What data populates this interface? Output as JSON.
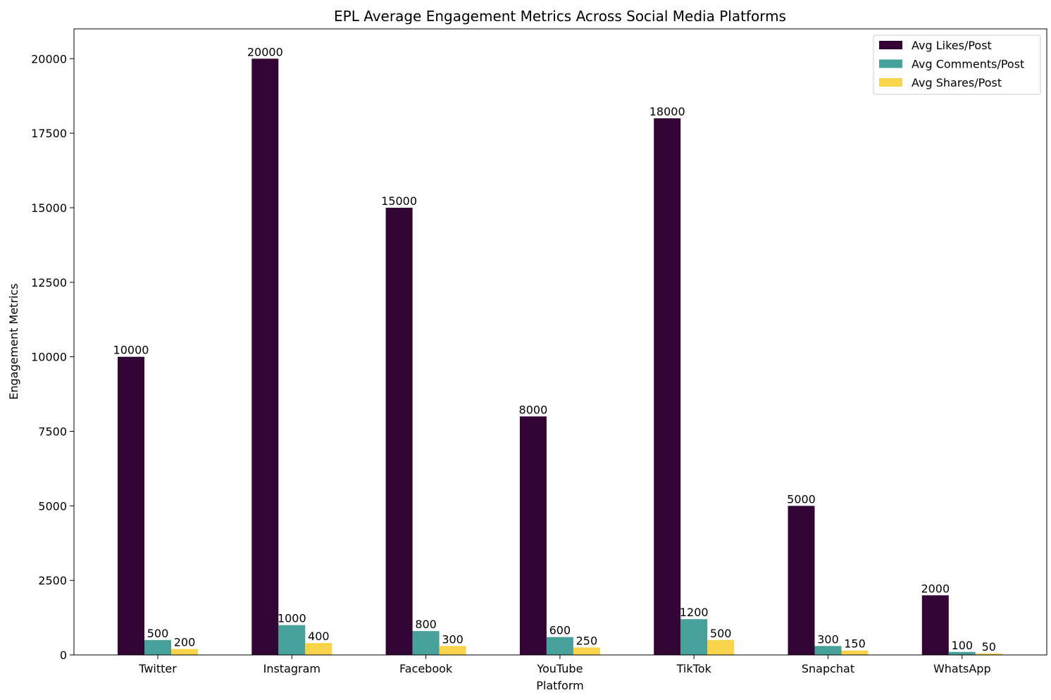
{
  "chart_data": {
    "type": "bar",
    "title": "EPL Average Engagement Metrics Across Social Media Platforms",
    "xlabel": "Platform",
    "ylabel": "Engagement Metrics",
    "categories": [
      "Twitter",
      "Instagram",
      "Facebook",
      "YouTube",
      "TikTok",
      "Snapchat",
      "WhatsApp"
    ],
    "series": [
      {
        "name": "Avg Likes/Post",
        "color": "#330534",
        "values": [
          10000,
          20000,
          15000,
          8000,
          18000,
          5000,
          2000
        ],
        "labels": [
          "10000",
          "20000",
          "15000",
          "8000",
          "18000",
          "5000",
          "2000"
        ]
      },
      {
        "name": "Avg Comments/Post",
        "color": "#48a09a",
        "values": [
          500,
          1000,
          800,
          600,
          1200,
          300,
          100
        ],
        "labels": [
          "500",
          "1000",
          "800",
          "600",
          "1200",
          "300",
          "100"
        ]
      },
      {
        "name": "Avg Shares/Post",
        "color": "#f7d44a",
        "values": [
          200,
          400,
          300,
          250,
          500,
          150,
          50
        ],
        "labels": [
          "200",
          "400",
          "300",
          "250",
          "500",
          "150",
          "50"
        ]
      }
    ],
    "ylim": [
      0,
      21000
    ],
    "yticks": [
      0,
      2500,
      5000,
      7500,
      10000,
      12500,
      15000,
      17500,
      20000
    ],
    "ytick_labels": [
      "0",
      "2500",
      "5000",
      "7500",
      "10000",
      "12500",
      "15000",
      "17500",
      "20000"
    ],
    "legend_position": "top-right",
    "grid": false
  }
}
